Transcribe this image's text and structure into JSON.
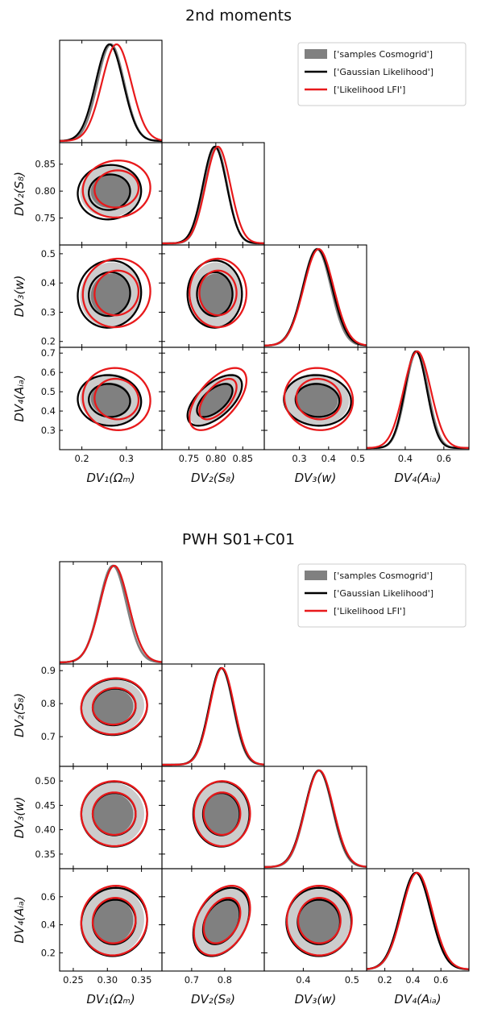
{
  "chart_data": [
    {
      "type": "triangle-corner-plot",
      "title": "2nd moments",
      "legend": {
        "position": "top-right",
        "entries": [
          {
            "label": "['samples Cosmogrid']",
            "color": "#808080"
          },
          {
            "label": "['Gaussian Likelihood']",
            "color": "#000000"
          },
          {
            "label": "['Likelihood LFI']",
            "color": "#e8191b"
          }
        ]
      },
      "params": [
        {
          "label": "DV₁(Ωₘ)",
          "range": [
            0.15,
            0.38
          ],
          "ticks": [
            0.2,
            0.3
          ],
          "tick_labels": [
            "0.2",
            "0.3"
          ],
          "mean": {
            "samples": 0.265,
            "gaussian": 0.262,
            "lfi": 0.278
          },
          "std": {
            "samples": 0.03,
            "gaussian": 0.031,
            "lfi": 0.033
          }
        },
        {
          "label": "DV₂(S₈)",
          "range": [
            0.7,
            0.89
          ],
          "ticks": [
            0.75,
            0.8,
            0.85
          ],
          "tick_labels": [
            "0.75",
            "0.80",
            "0.85"
          ],
          "mean": {
            "samples": 0.8,
            "gaussian": 0.798,
            "lfi": 0.804
          },
          "std": {
            "samples": 0.021,
            "gaussian": 0.022,
            "lfi": 0.023
          }
        },
        {
          "label": "DV₃(w)",
          "range": [
            0.18,
            0.53
          ],
          "ticks": [
            0.3,
            0.4,
            0.5
          ],
          "tick_labels": [
            "0.3",
            "0.4",
            "0.5"
          ],
          "y_ticks": [
            0.2,
            0.3,
            0.4,
            0.5
          ],
          "y_tick_labels": [
            "0.2",
            "0.3",
            "0.4",
            "0.5"
          ],
          "mean": {
            "samples": 0.36,
            "gaussian": 0.362,
            "lfi": 0.366
          },
          "std": {
            "samples": 0.048,
            "gaussian": 0.05,
            "lfi": 0.051
          }
        },
        {
          "label": "DV₄(Aᵢₐ)",
          "range": [
            0.2,
            0.73
          ],
          "ticks": [
            0.4,
            0.6
          ],
          "tick_labels": [
            "0.4",
            "0.6"
          ],
          "y_ticks": [
            0.3,
            0.4,
            0.5,
            0.6,
            0.7
          ],
          "y_tick_labels": [
            "0.3",
            "0.4",
            "0.5",
            "0.6",
            "0.7"
          ],
          "mean": {
            "samples": 0.46,
            "gaussian": 0.455,
            "lfi": 0.462
          },
          "std": {
            "samples": 0.058,
            "gaussian": 0.057,
            "lfi": 0.07
          }
        }
      ],
      "correlations": {
        "0-1": 0.05,
        "0-2": 0.05,
        "1-2": 0.0,
        "0-3": -0.05,
        "1-3": 0.6,
        "2-3": -0.05
      }
    },
    {
      "type": "triangle-corner-plot",
      "title": "PWH S01+C01",
      "legend": {
        "position": "top-right",
        "entries": [
          {
            "label": "['samples Cosmogrid']",
            "color": "#808080"
          },
          {
            "label": "['Gaussian Likelihood']",
            "color": "#000000"
          },
          {
            "label": "['Likelihood LFI']",
            "color": "#e8191b"
          }
        ]
      },
      "params": [
        {
          "label": "DV₁(Ωₘ)",
          "range": [
            0.23,
            0.38
          ],
          "ticks": [
            0.25,
            0.3,
            0.35
          ],
          "tick_labels": [
            "0.25",
            "0.30",
            "0.35"
          ],
          "mean": {
            "samples": 0.308,
            "gaussian": 0.31,
            "lfi": 0.31
          },
          "std": {
            "samples": 0.02,
            "gaussian": 0.021,
            "lfi": 0.021
          }
        },
        {
          "label": "DV₂(S₈)",
          "range": [
            0.61,
            0.92
          ],
          "ticks": [
            0.7,
            0.8
          ],
          "tick_labels": [
            "0.7",
            "0.8"
          ],
          "y_ticks": [
            0.7,
            0.8,
            0.9
          ],
          "y_tick_labels": [
            "0.7",
            "0.8",
            "0.9"
          ],
          "mean": {
            "samples": 0.79,
            "gaussian": 0.79,
            "lfi": 0.792
          },
          "std": {
            "samples": 0.036,
            "gaussian": 0.037,
            "lfi": 0.037
          }
        },
        {
          "label": "DV₃(w)",
          "range": [
            0.32,
            0.53
          ],
          "ticks": [
            0.4,
            0.5
          ],
          "tick_labels": [
            "0.4",
            "0.5"
          ],
          "y_ticks": [
            0.35,
            0.4,
            0.45,
            0.5
          ],
          "y_tick_labels": [
            "0.35",
            "0.40",
            "0.45",
            "0.50"
          ],
          "mean": {
            "samples": 0.432,
            "gaussian": 0.432,
            "lfi": 0.433
          },
          "std": {
            "samples": 0.028,
            "gaussian": 0.029,
            "lfi": 0.029
          }
        },
        {
          "label": "DV₄(Aᵢₐ)",
          "range": [
            0.07,
            0.8
          ],
          "ticks": [
            0.2,
            0.4,
            0.6
          ],
          "tick_labels": [
            "0.2",
            "0.4",
            "0.6"
          ],
          "mean": {
            "samples": 0.425,
            "gaussian": 0.42,
            "lfi": 0.43
          },
          "std": {
            "samples": 0.105,
            "gaussian": 0.106,
            "lfi": 0.108
          }
        }
      ],
      "correlations": {
        "0-1": 0.05,
        "0-2": 0.0,
        "1-2": 0.0,
        "0-3": 0.05,
        "1-3": 0.35,
        "2-3": 0.0
      }
    }
  ]
}
